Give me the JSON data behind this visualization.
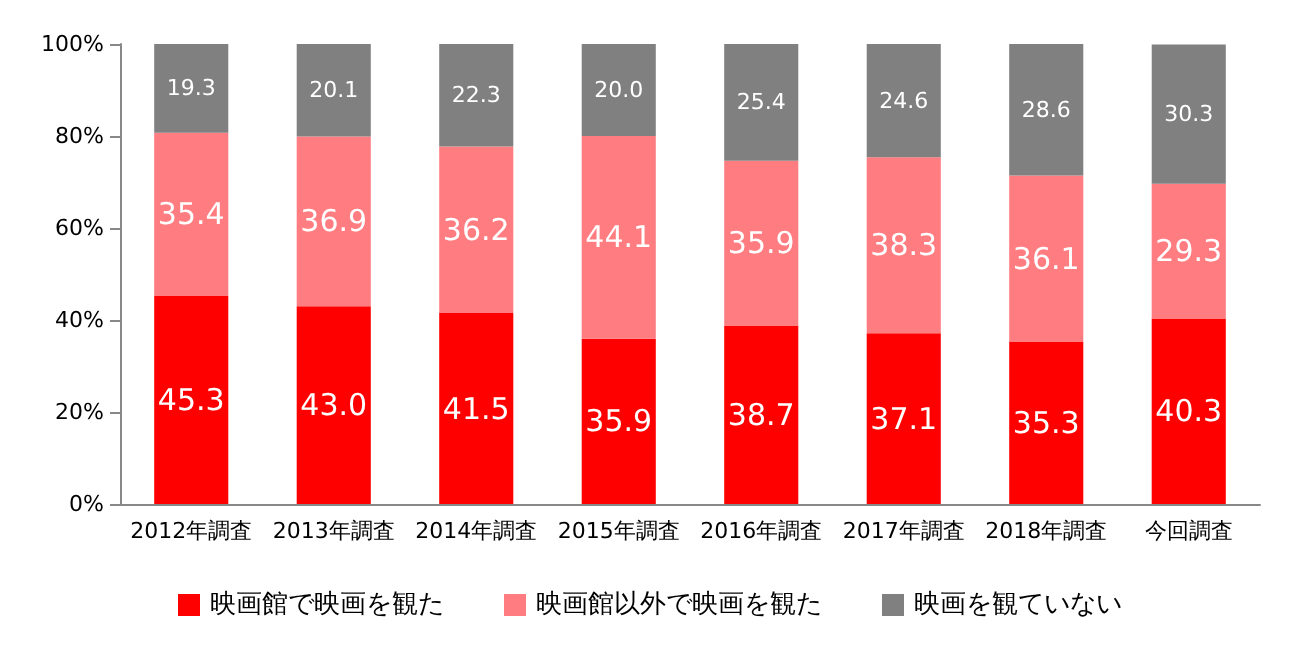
{
  "chart_data": {
    "type": "bar",
    "stacked": true,
    "categories": [
      "2012年調査",
      "2013年調査",
      "2014年調査",
      "2015年調査",
      "2016年調査",
      "2017年調査",
      "2018年調査",
      "今回調査"
    ],
    "series": [
      {
        "name": "映画館で映画を観た",
        "color": "#ff0000",
        "values": [
          45.3,
          43.0,
          41.5,
          35.9,
          38.7,
          37.1,
          35.3,
          40.3
        ],
        "value_labels": [
          "45.3",
          "43.0",
          "41.5",
          "35.9",
          "38.7",
          "37.1",
          "35.3",
          "40.3"
        ]
      },
      {
        "name": "映画館以外で映画を観た",
        "color": "#ff7c80",
        "values": [
          35.4,
          36.9,
          36.2,
          44.1,
          35.9,
          38.3,
          36.1,
          29.3
        ],
        "value_labels": [
          "35.4",
          "36.9",
          "36.2",
          "44.1",
          "35.9",
          "38.3",
          "36.1",
          "29.3"
        ]
      },
      {
        "name": "映画を観ていない",
        "color": "#808080",
        "values": [
          19.3,
          20.1,
          22.3,
          20.0,
          25.4,
          24.6,
          28.6,
          30.3
        ],
        "value_labels": [
          "19.3",
          "20.1",
          "22.3",
          "20.0",
          "25.4",
          "24.6",
          "28.6",
          "30.3"
        ]
      }
    ],
    "ylim": [
      0,
      100
    ],
    "yticks": [
      {
        "value": 0,
        "label": "0%"
      },
      {
        "value": 20,
        "label": "20%"
      },
      {
        "value": 40,
        "label": "40%"
      },
      {
        "value": 60,
        "label": "60%"
      },
      {
        "value": 80,
        "label": "80%"
      },
      {
        "value": 100,
        "label": "100%"
      }
    ],
    "grid": false,
    "legend": "bottom"
  }
}
